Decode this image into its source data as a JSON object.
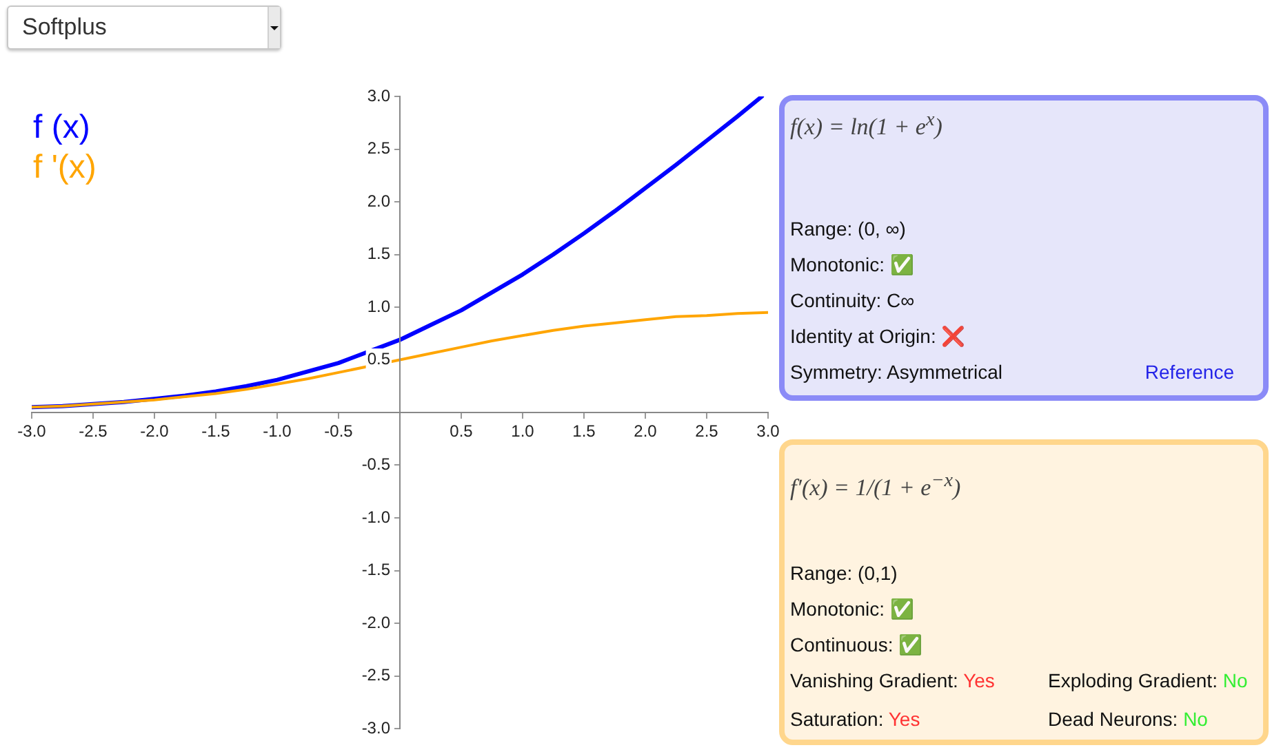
{
  "chart_data": [
    {
      "type": "line",
      "title": "Softplus",
      "series": [
        {
          "name": "f (x)",
          "color": "#0000ff",
          "x": [
            -3,
            -2.75,
            -2.5,
            -2.25,
            -2,
            -1.75,
            -1.5,
            -1.25,
            -1,
            -0.75,
            -0.5,
            0,
            0.25,
            0.5,
            0.75,
            1,
            1.25,
            1.5,
            1.75,
            2,
            2.25,
            2.5,
            2.75,
            2.95
          ],
          "values": [
            0.05,
            0.06,
            0.08,
            0.1,
            0.13,
            0.16,
            0.2,
            0.25,
            0.31,
            0.39,
            0.47,
            0.69,
            0.83,
            0.97,
            1.14,
            1.31,
            1.5,
            1.7,
            1.91,
            2.13,
            2.35,
            2.58,
            2.81,
            3.0
          ]
        },
        {
          "name": "f '(x)",
          "color": "#ffa500",
          "x": [
            -3,
            -2.75,
            -2.5,
            -2.25,
            -2,
            -1.75,
            -1.5,
            -1.25,
            -1,
            -0.75,
            -0.5,
            0,
            0.25,
            0.5,
            0.75,
            1,
            1.25,
            1.5,
            1.75,
            2,
            2.25,
            2.5,
            2.75,
            3
          ],
          "values": [
            0.05,
            0.06,
            0.08,
            0.1,
            0.12,
            0.15,
            0.18,
            0.22,
            0.27,
            0.32,
            0.38,
            0.5,
            0.56,
            0.62,
            0.68,
            0.73,
            0.78,
            0.82,
            0.85,
            0.88,
            0.91,
            0.92,
            0.94,
            0.95
          ]
        }
      ],
      "xlim": [
        -3,
        3
      ],
      "ylim": [
        -3,
        3
      ],
      "xticks": [
        {
          "value": -3,
          "label": "-3.0"
        },
        {
          "value": -2.5,
          "label": "-2.5"
        },
        {
          "value": -2,
          "label": "-2.0"
        },
        {
          "value": -1.5,
          "label": "-1.5"
        },
        {
          "value": -1,
          "label": "-1.0"
        },
        {
          "value": -0.5,
          "label": "-0.5"
        },
        {
          "value": 0.5,
          "label": "0.5"
        },
        {
          "value": 1,
          "label": "1.0"
        },
        {
          "value": 1.5,
          "label": "1.5"
        },
        {
          "value": 2,
          "label": "2.0"
        },
        {
          "value": 2.5,
          "label": "2.5"
        },
        {
          "value": 3,
          "label": "3.0"
        }
      ],
      "yticks": [
        {
          "value": -3,
          "label": "-3.0"
        },
        {
          "value": -2.5,
          "label": "-2.5"
        },
        {
          "value": -2,
          "label": "-2.0"
        },
        {
          "value": -1.5,
          "label": "-1.5"
        },
        {
          "value": -1,
          "label": "-1.0"
        },
        {
          "value": -0.5,
          "label": "-0.5"
        },
        {
          "value": 0.5,
          "label": "0.5"
        },
        {
          "value": 1,
          "label": "1.0"
        },
        {
          "value": 1.5,
          "label": "1.5"
        },
        {
          "value": 2,
          "label": "2.0"
        },
        {
          "value": 2.5,
          "label": "2.5"
        },
        {
          "value": 3,
          "label": "3.0"
        }
      ],
      "grid": false,
      "legend": "top left"
    },
    {
      "type": "other",
      "title": "f(x) = ln(1 + e$^{x}$)",
      "annotations": [
        "Range: (0, ∞)",
        "Monotonic: ✅",
        "Continuity: C∞",
        "Identity at Origin: ❌",
        "Symmetry: Asymmetrical",
        "Reference"
      ]
    },
    {
      "type": "other",
      "title": "f′(x) = 1/(1 + e$^{−x}$)",
      "annotations": [
        "Range: (0,1)",
        "Monotonic: ✅",
        "Continuous: ✅",
        "Vanishing Gradient: Yes",
        "Exploding Gradient: No",
        "Saturation: Yes",
        "Dead Neurons: No"
      ]
    }
  ]
}
